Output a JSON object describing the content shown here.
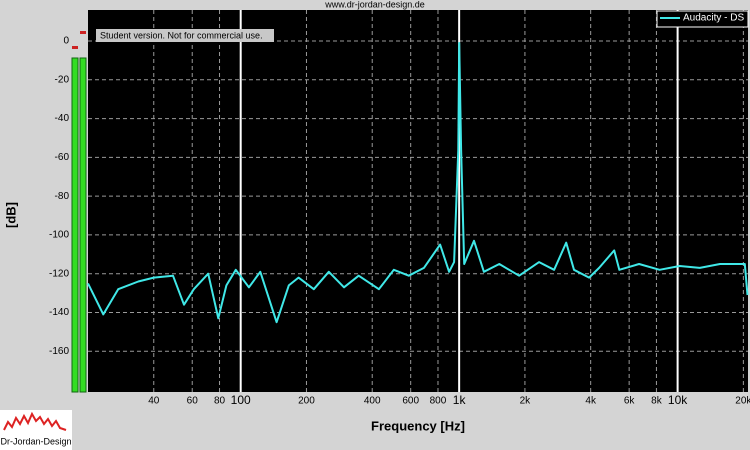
{
  "header": {
    "url": "www.dr-jordan-design.de",
    "logo": "Dr-Jordan-Design"
  },
  "chart_data": {
    "type": "line",
    "annotation": "Student version. Not for commercial use.",
    "x_label": "Frequency [Hz]",
    "y_label": "[dB]",
    "log_x": true,
    "grid": true,
    "legend": "top-right",
    "xlim": [
      20,
      21000
    ],
    "ylim": [
      -181,
      16
    ],
    "xticks": [
      40,
      60,
      80,
      100,
      200,
      400,
      600,
      800,
      {
        "value": 1000,
        "label": "1k"
      },
      {
        "value": 2000,
        "label": "2k"
      },
      {
        "value": 4000,
        "label": "4k"
      },
      {
        "value": 6000,
        "label": "6k"
      },
      {
        "value": 8000,
        "label": "8k"
      },
      {
        "value": 10000,
        "label": "10k"
      },
      {
        "value": 20000,
        "label": "20k"
      }
    ],
    "yticks": [
      0,
      -20,
      -40,
      -60,
      -80,
      -100,
      -120,
      -140,
      -160
    ],
    "x": [
      20,
      23.5,
      27.5,
      34,
      40,
      49,
      55,
      61,
      71,
      79,
      86,
      95,
      109,
      123,
      146,
      166,
      184,
      216,
      253,
      297,
      347,
      429,
      502,
      588,
      690,
      818,
      899,
      948,
      991,
      1000,
      1021,
      1055,
      1170,
      1298,
      1526,
      1881,
      2322,
      2720,
      3089,
      3357,
      3935,
      4372,
      5128,
      5408,
      6667,
      8268,
      10213,
      12640,
      15640,
      20300,
      20900
    ],
    "series": [
      {
        "name": "Audacity - DS",
        "color": "#40e8e8",
        "values": [
          -125,
          -141,
          -128,
          -124,
          -122,
          -121,
          -136,
          -128,
          -120,
          -143,
          -126,
          -118,
          -127,
          -119,
          -145,
          -126,
          -122,
          -128,
          -119,
          -127,
          -121,
          -128,
          -118,
          -121,
          -117,
          -105,
          -119,
          -114,
          -56,
          -1,
          -56,
          -115,
          -103,
          -119,
          -115,
          -121,
          -114,
          -118,
          -104,
          -118,
          -122,
          -117,
          -108,
          -118,
          -115,
          -118,
          -116,
          -117,
          -115,
          -115,
          -131
        ]
      }
    ]
  }
}
